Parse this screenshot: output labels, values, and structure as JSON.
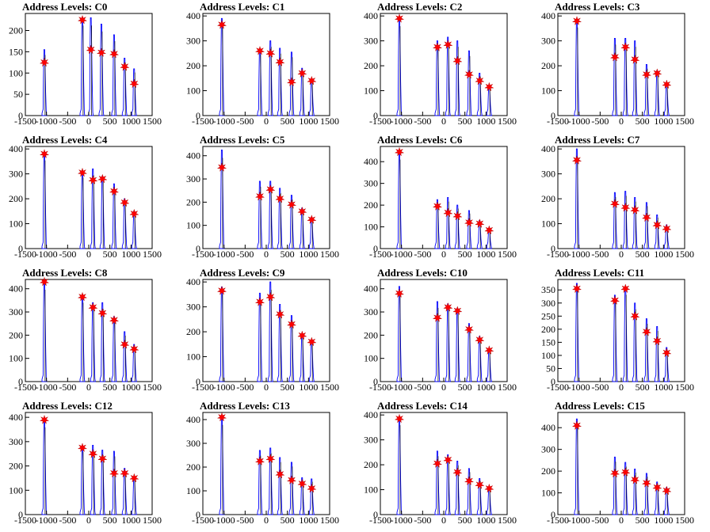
{
  "chart_data": [
    {
      "type": "histogram",
      "title": "Address Levels: C0",
      "xlim": [
        -1500,
        1500
      ],
      "ylim": [
        0,
        240
      ],
      "yticks": [
        0,
        50,
        100,
        150,
        200
      ],
      "xticks": [
        -1500,
        -1000,
        -500,
        0,
        500,
        1000,
        1500
      ],
      "peaks": [
        {
          "x": -1050,
          "y": 155,
          "star": 125
        },
        {
          "x": -150,
          "y": 230,
          "star": 225
        },
        {
          "x": 50,
          "y": 230,
          "star": 155
        },
        {
          "x": 300,
          "y": 215,
          "star": 148
        },
        {
          "x": 600,
          "y": 190,
          "star": 145
        },
        {
          "x": 850,
          "y": 135,
          "star": 115
        },
        {
          "x": 1075,
          "y": 110,
          "star": 75
        }
      ]
    },
    {
      "type": "histogram",
      "title": "Address Levels: C1",
      "xlim": [
        -1500,
        1500
      ],
      "ylim": [
        0,
        410
      ],
      "yticks": [
        0,
        100,
        200,
        300,
        400
      ],
      "xticks": [
        -1500,
        -1000,
        -500,
        0,
        500,
        1000,
        1500
      ],
      "peaks": [
        {
          "x": -1050,
          "y": 390,
          "star": 365
        },
        {
          "x": -150,
          "y": 265,
          "star": 260
        },
        {
          "x": 100,
          "y": 300,
          "star": 250
        },
        {
          "x": 325,
          "y": 270,
          "star": 215
        },
        {
          "x": 600,
          "y": 255,
          "star": 135
        },
        {
          "x": 850,
          "y": 190,
          "star": 170
        },
        {
          "x": 1075,
          "y": 145,
          "star": 140
        }
      ]
    },
    {
      "type": "histogram",
      "title": "Address Levels: C2",
      "xlim": [
        -1500,
        1500
      ],
      "ylim": [
        0,
        410
      ],
      "yticks": [
        0,
        100,
        200,
        300,
        400
      ],
      "xticks": [
        -1500,
        -1000,
        -500,
        0,
        500,
        1000,
        1500
      ],
      "peaks": [
        {
          "x": -1050,
          "y": 390,
          "star": 390
        },
        {
          "x": -150,
          "y": 300,
          "star": 275
        },
        {
          "x": 100,
          "y": 315,
          "star": 285
        },
        {
          "x": 325,
          "y": 300,
          "star": 220
        },
        {
          "x": 600,
          "y": 260,
          "star": 165
        },
        {
          "x": 850,
          "y": 170,
          "star": 140
        },
        {
          "x": 1075,
          "y": 120,
          "star": 115
        }
      ]
    },
    {
      "type": "histogram",
      "title": "Address Levels: C3",
      "xlim": [
        -1500,
        1500
      ],
      "ylim": [
        0,
        410
      ],
      "yticks": [
        0,
        100,
        200,
        300,
        400
      ],
      "xticks": [
        -1500,
        -1000,
        -500,
        0,
        500,
        1000,
        1500
      ],
      "peaks": [
        {
          "x": -1050,
          "y": 385,
          "star": 380
        },
        {
          "x": -150,
          "y": 310,
          "star": 235
        },
        {
          "x": 100,
          "y": 310,
          "star": 275
        },
        {
          "x": 325,
          "y": 300,
          "star": 225
        },
        {
          "x": 600,
          "y": 205,
          "star": 165
        },
        {
          "x": 850,
          "y": 180,
          "star": 170
        },
        {
          "x": 1075,
          "y": 130,
          "star": 125
        }
      ]
    },
    {
      "type": "histogram",
      "title": "Address Levels: C4",
      "xlim": [
        -1500,
        1500
      ],
      "ylim": [
        0,
        410
      ],
      "yticks": [
        0,
        100,
        200,
        300,
        400
      ],
      "xticks": [
        -1500,
        -1000,
        -500,
        0,
        500,
        1000,
        1500
      ],
      "peaks": [
        {
          "x": -1050,
          "y": 385,
          "star": 380
        },
        {
          "x": -150,
          "y": 310,
          "star": 305
        },
        {
          "x": 100,
          "y": 320,
          "star": 275
        },
        {
          "x": 325,
          "y": 290,
          "star": 280
        },
        {
          "x": 600,
          "y": 260,
          "star": 230
        },
        {
          "x": 850,
          "y": 200,
          "star": 185
        },
        {
          "x": 1075,
          "y": 150,
          "star": 140
        }
      ]
    },
    {
      "type": "histogram",
      "title": "Address Levels: C5",
      "xlim": [
        -1500,
        1500
      ],
      "ylim": [
        0,
        440
      ],
      "yticks": [
        0,
        100,
        200,
        300,
        400
      ],
      "xticks": [
        -1500,
        -1000,
        -500,
        0,
        500,
        1000,
        1500
      ],
      "peaks": [
        {
          "x": -1050,
          "y": 425,
          "star": 350
        },
        {
          "x": -150,
          "y": 290,
          "star": 225
        },
        {
          "x": 100,
          "y": 290,
          "star": 255
        },
        {
          "x": 325,
          "y": 260,
          "star": 215
        },
        {
          "x": 600,
          "y": 230,
          "star": 190
        },
        {
          "x": 850,
          "y": 175,
          "star": 160
        },
        {
          "x": 1075,
          "y": 135,
          "star": 125
        }
      ]
    },
    {
      "type": "histogram",
      "title": "Address Levels: C6",
      "xlim": [
        -1500,
        1500
      ],
      "ylim": [
        0,
        470
      ],
      "yticks": [
        0,
        100,
        200,
        300,
        400
      ],
      "xticks": [
        -1500,
        -1000,
        -500,
        0,
        500,
        1000,
        1500
      ],
      "peaks": [
        {
          "x": -1050,
          "y": 445,
          "star": 445
        },
        {
          "x": -150,
          "y": 225,
          "star": 195
        },
        {
          "x": 100,
          "y": 235,
          "star": 165
        },
        {
          "x": 325,
          "y": 200,
          "star": 150
        },
        {
          "x": 600,
          "y": 175,
          "star": 120
        },
        {
          "x": 850,
          "y": 130,
          "star": 115
        },
        {
          "x": 1075,
          "y": 95,
          "star": 85
        }
      ]
    },
    {
      "type": "histogram",
      "title": "Address Levels: C7",
      "xlim": [
        -1500,
        1500
      ],
      "ylim": [
        0,
        410
      ],
      "yticks": [
        0,
        100,
        200,
        300,
        400
      ],
      "xticks": [
        -1500,
        -1000,
        -500,
        0,
        500,
        1000,
        1500
      ],
      "peaks": [
        {
          "x": -1050,
          "y": 400,
          "star": 355
        },
        {
          "x": -150,
          "y": 225,
          "star": 180
        },
        {
          "x": 100,
          "y": 230,
          "star": 165
        },
        {
          "x": 325,
          "y": 205,
          "star": 155
        },
        {
          "x": 600,
          "y": 185,
          "star": 125
        },
        {
          "x": 850,
          "y": 135,
          "star": 95
        },
        {
          "x": 1075,
          "y": 95,
          "star": 80
        }
      ]
    },
    {
      "type": "histogram",
      "title": "Address Levels: C8",
      "xlim": [
        -1500,
        1500
      ],
      "ylim": [
        0,
        440
      ],
      "yticks": [
        0,
        100,
        200,
        300,
        400
      ],
      "xticks": [
        -1500,
        -1000,
        -500,
        0,
        500,
        1000,
        1500
      ],
      "peaks": [
        {
          "x": -1050,
          "y": 430,
          "star": 430
        },
        {
          "x": -150,
          "y": 370,
          "star": 365
        },
        {
          "x": 100,
          "y": 340,
          "star": 320
        },
        {
          "x": 325,
          "y": 340,
          "star": 295
        },
        {
          "x": 600,
          "y": 280,
          "star": 265
        },
        {
          "x": 850,
          "y": 215,
          "star": 160
        },
        {
          "x": 1075,
          "y": 160,
          "star": 140
        }
      ]
    },
    {
      "type": "histogram",
      "title": "Address Levels: C9",
      "xlim": [
        -1500,
        1500
      ],
      "ylim": [
        0,
        410
      ],
      "yticks": [
        0,
        100,
        200,
        300,
        400
      ],
      "xticks": [
        -1500,
        -1000,
        -500,
        0,
        500,
        1000,
        1500
      ],
      "peaks": [
        {
          "x": -1050,
          "y": 380,
          "star": 365
        },
        {
          "x": -150,
          "y": 355,
          "star": 320
        },
        {
          "x": 100,
          "y": 400,
          "star": 340
        },
        {
          "x": 325,
          "y": 310,
          "star": 270
        },
        {
          "x": 600,
          "y": 265,
          "star": 230
        },
        {
          "x": 850,
          "y": 190,
          "star": 185
        },
        {
          "x": 1075,
          "y": 165,
          "star": 160
        }
      ]
    },
    {
      "type": "histogram",
      "title": "Address Levels: C10",
      "xlim": [
        -1500,
        1500
      ],
      "ylim": [
        0,
        440
      ],
      "yticks": [
        0,
        100,
        200,
        300,
        400
      ],
      "xticks": [
        -1500,
        -1000,
        -500,
        0,
        500,
        1000,
        1500
      ],
      "peaks": [
        {
          "x": -1050,
          "y": 410,
          "star": 380
        },
        {
          "x": -150,
          "y": 345,
          "star": 275
        },
        {
          "x": 100,
          "y": 335,
          "star": 320
        },
        {
          "x": 325,
          "y": 315,
          "star": 305
        },
        {
          "x": 600,
          "y": 250,
          "star": 225
        },
        {
          "x": 850,
          "y": 195,
          "star": 180
        },
        {
          "x": 1075,
          "y": 140,
          "star": 135
        }
      ]
    },
    {
      "type": "histogram",
      "title": "Address Levels: C11",
      "xlim": [
        -1500,
        1500
      ],
      "ylim": [
        0,
        390
      ],
      "yticks": [
        0,
        50,
        100,
        150,
        200,
        250,
        300,
        350
      ],
      "xticks": [
        -1500,
        -1000,
        -500,
        0,
        500,
        1000,
        1500
      ],
      "peaks": [
        {
          "x": -1050,
          "y": 375,
          "star": 355
        },
        {
          "x": -150,
          "y": 330,
          "star": 310
        },
        {
          "x": 100,
          "y": 360,
          "star": 355
        },
        {
          "x": 325,
          "y": 300,
          "star": 250
        },
        {
          "x": 600,
          "y": 240,
          "star": 190
        },
        {
          "x": 850,
          "y": 210,
          "star": 155
        },
        {
          "x": 1075,
          "y": 130,
          "star": 110
        }
      ]
    },
    {
      "type": "histogram",
      "title": "Address Levels: C12",
      "xlim": [
        -1500,
        1500
      ],
      "ylim": [
        0,
        420
      ],
      "yticks": [
        0,
        100,
        200,
        300,
        400
      ],
      "xticks": [
        -1500,
        -1000,
        -500,
        0,
        500,
        1000,
        1500
      ],
      "peaks": [
        {
          "x": -1050,
          "y": 390,
          "star": 390
        },
        {
          "x": -150,
          "y": 280,
          "star": 275
        },
        {
          "x": 100,
          "y": 285,
          "star": 250
        },
        {
          "x": 325,
          "y": 265,
          "star": 230
        },
        {
          "x": 600,
          "y": 260,
          "star": 170
        },
        {
          "x": 850,
          "y": 190,
          "star": 170
        },
        {
          "x": 1075,
          "y": 155,
          "star": 150
        }
      ]
    },
    {
      "type": "histogram",
      "title": "Address Levels: C13",
      "xlim": [
        -1500,
        1500
      ],
      "ylim": [
        0,
        430
      ],
      "yticks": [
        0,
        100,
        200,
        300,
        400
      ],
      "xticks": [
        -1500,
        -1000,
        -500,
        0,
        500,
        1000,
        1500
      ],
      "peaks": [
        {
          "x": -1050,
          "y": 410,
          "star": 410
        },
        {
          "x": -150,
          "y": 270,
          "star": 225
        },
        {
          "x": 100,
          "y": 280,
          "star": 235
        },
        {
          "x": 325,
          "y": 240,
          "star": 170
        },
        {
          "x": 600,
          "y": 220,
          "star": 145
        },
        {
          "x": 850,
          "y": 155,
          "star": 130
        },
        {
          "x": 1075,
          "y": 150,
          "star": 110
        }
      ]
    },
    {
      "type": "histogram",
      "title": "Address Levels: C14",
      "xlim": [
        -1500,
        1500
      ],
      "ylim": [
        0,
        410
      ],
      "yticks": [
        0,
        100,
        200,
        300,
        400
      ],
      "xticks": [
        -1500,
        -1000,
        -500,
        0,
        500,
        1000,
        1500
      ],
      "peaks": [
        {
          "x": -1050,
          "y": 390,
          "star": 385
        },
        {
          "x": -150,
          "y": 255,
          "star": 205
        },
        {
          "x": 100,
          "y": 240,
          "star": 220
        },
        {
          "x": 325,
          "y": 215,
          "star": 170
        },
        {
          "x": 600,
          "y": 185,
          "star": 135
        },
        {
          "x": 850,
          "y": 145,
          "star": 120
        },
        {
          "x": 1075,
          "y": 110,
          "star": 105
        }
      ]
    },
    {
      "type": "histogram",
      "title": "Address Levels: C15",
      "xlim": [
        -1500,
        1500
      ],
      "ylim": [
        0,
        470
      ],
      "yticks": [
        0,
        100,
        200,
        300,
        400
      ],
      "xticks": [
        -1500,
        -1000,
        -500,
        0,
        500,
        1000,
        1500
      ],
      "peaks": [
        {
          "x": -1050,
          "y": 440,
          "star": 410
        },
        {
          "x": -150,
          "y": 265,
          "star": 190
        },
        {
          "x": 100,
          "y": 240,
          "star": 195
        },
        {
          "x": 325,
          "y": 210,
          "star": 160
        },
        {
          "x": 600,
          "y": 190,
          "star": 145
        },
        {
          "x": 850,
          "y": 150,
          "star": 125
        },
        {
          "x": 1075,
          "y": 125,
          "star": 110
        }
      ]
    }
  ],
  "colors": {
    "histogram": "#0000ff",
    "stars": "#ff0000",
    "axis": "#000000"
  }
}
